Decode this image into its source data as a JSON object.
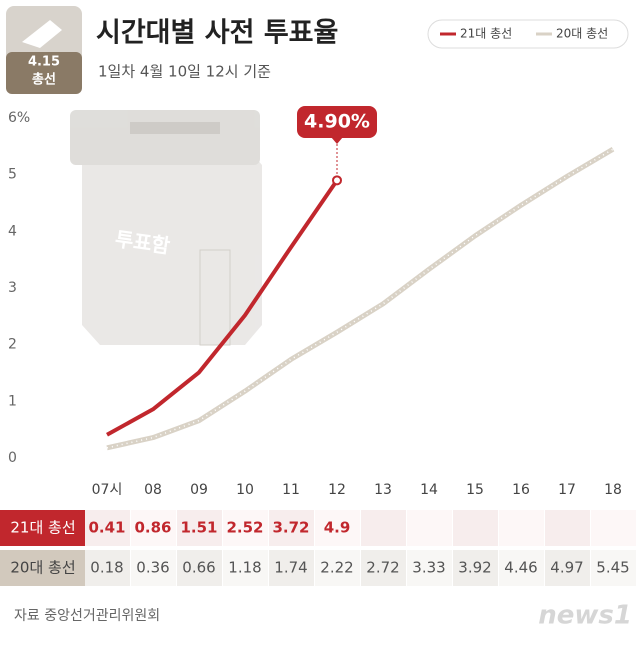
{
  "chart_data": {
    "type": "line",
    "title": "시간대별 사전 투표율",
    "subtitle": "1일차 4월 10일  12시 기준",
    "badge": [
      "4.15",
      "총선"
    ],
    "illustration_text": "투표함",
    "annotation": "4.90%",
    "source": "자료 중앙선거관리위원회",
    "logo": "news1",
    "categories": [
      "07시",
      "08",
      "09",
      "10",
      "11",
      "12",
      "13",
      "14",
      "15",
      "16",
      "17",
      "18"
    ],
    "series": [
      {
        "name": "21대 총선",
        "color": "#c1272d",
        "values": [
          0.41,
          0.86,
          1.51,
          2.52,
          3.72,
          4.9,
          null,
          null,
          null,
          null,
          null,
          null
        ]
      },
      {
        "name": "20대 총선",
        "color": "#d9d2c6",
        "values": [
          0.18,
          0.36,
          0.66,
          1.18,
          1.74,
          2.22,
          2.72,
          3.33,
          3.92,
          4.46,
          4.97,
          5.45
        ]
      }
    ],
    "ylim": [
      0,
      6
    ],
    "yticks": [
      0,
      1,
      2,
      3,
      4,
      5,
      {
        "value": 6,
        "label": "6%"
      }
    ],
    "legend": "top-right"
  }
}
